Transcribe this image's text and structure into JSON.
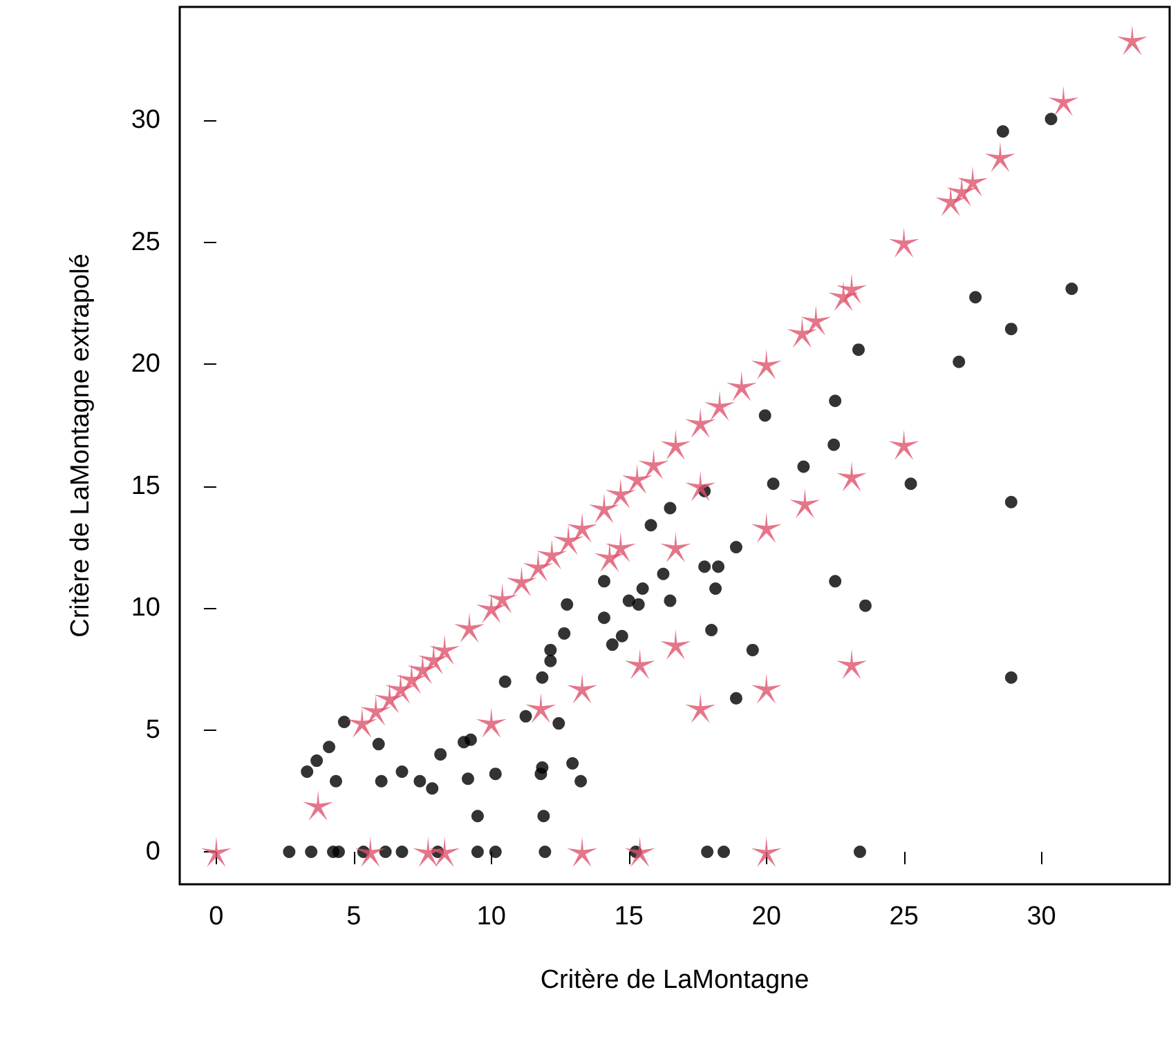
{
  "chart_data": {
    "type": "scatter",
    "xlabel": "Critère de LaMontagne",
    "ylabel": "Critère de LaMontagne extrapolé",
    "xlim": [
      -1.33,
      34.66
    ],
    "ylim": [
      -1.33,
      34.66
    ],
    "xticks": [
      0,
      5,
      10,
      15,
      20,
      25,
      30
    ],
    "yticks": [
      0,
      5,
      10,
      15,
      20,
      25,
      30
    ],
    "grid": false,
    "series": [
      {
        "color": "#000000",
        "marker": "circle",
        "x": [
          2.65,
          3.45,
          4.25,
          4.45,
          5.35,
          6.15,
          6.75,
          8.05,
          9.5,
          10.15,
          11.95,
          15.25,
          17.85,
          18.45,
          23.4,
          3.3,
          3.65,
          4.35,
          4.1,
          4.65,
          5.9,
          6.0,
          6.75,
          7.4,
          7.85,
          8.15,
          9.0,
          9.15,
          9.25,
          10.15,
          9.5,
          10.5,
          11.25,
          11.8,
          11.85,
          11.9,
          12.15,
          12.45,
          12.95,
          13.25,
          11.85,
          12.15,
          12.65,
          12.75,
          14.1,
          14.1,
          14.4,
          14.75,
          15.0,
          15.35,
          15.5,
          16.25,
          16.5,
          18.0,
          18.15,
          17.75,
          18.25,
          18.9,
          18.9,
          19.5,
          19.95,
          20.25,
          21.35,
          22.5,
          22.45,
          22.5,
          23.35,
          23.6,
          25.25,
          27.0,
          27.6,
          28.9,
          28.9,
          28.9,
          31.1,
          28.6,
          30.35,
          15.8,
          16.5,
          17.75
        ],
        "values": [
          0,
          0,
          0,
          0,
          0,
          0,
          0,
          0,
          0,
          0,
          0,
          0,
          0,
          0,
          0,
          3.29,
          3.74,
          2.9,
          4.3,
          5.33,
          4.42,
          2.9,
          3.29,
          2.9,
          2.6,
          4.0,
          4.5,
          3.0,
          4.6,
          3.2,
          1.47,
          6.98,
          5.56,
          3.2,
          3.46,
          1.47,
          7.83,
          5.27,
          3.63,
          2.9,
          7.15,
          8.28,
          8.96,
          10.15,
          11.1,
          9.6,
          8.5,
          8.85,
          10.3,
          10.15,
          10.8,
          11.4,
          10.3,
          9.1,
          10.8,
          11.7,
          11.7,
          12.5,
          6.3,
          8.28,
          17.9,
          15.1,
          15.8,
          18.5,
          16.7,
          11.1,
          20.6,
          10.1,
          15.1,
          20.1,
          22.75,
          21.45,
          14.35,
          7.15,
          23.1,
          29.55,
          30.06,
          13.4,
          14.1,
          14.8
        ]
      },
      {
        "color": "#df536b",
        "marker": "star",
        "x": [
          0,
          5.3,
          5.8,
          6.3,
          6.7,
          7.1,
          7.5,
          7.9,
          8.3,
          9.2,
          10,
          10.4,
          11.1,
          11.7,
          12.2,
          12.8,
          13.3,
          14.1,
          14.7,
          15.3,
          15.9,
          16.7,
          17.6,
          18.3,
          19.1,
          20,
          21.3,
          21.8,
          22.8,
          23.1,
          25,
          26.7,
          27.1,
          27.5,
          28.5,
          30.8,
          33.3,
          20,
          21.4,
          23.1,
          25,
          23.1,
          16.7,
          15.4,
          13.3,
          11.8,
          10,
          5.6,
          7.7,
          8.3,
          13.3,
          15.4,
          20,
          3.7,
          20,
          17.6,
          14.3,
          14.7,
          16.7,
          17.6
        ],
        "values": [
          0,
          5.3,
          5.8,
          6.3,
          6.7,
          7.1,
          7.5,
          7.9,
          8.3,
          9.2,
          10,
          10.4,
          11.1,
          11.7,
          12.2,
          12.8,
          13.3,
          14.1,
          14.7,
          15.3,
          15.9,
          16.7,
          17.6,
          18.3,
          19.1,
          20,
          21.3,
          21.8,
          22.8,
          23.1,
          25,
          26.7,
          27.1,
          27.5,
          28.5,
          30.8,
          33.3,
          13.3,
          14.3,
          15.4,
          16.7,
          7.7,
          8.5,
          7.7,
          6.7,
          5.9,
          5.3,
          0,
          0,
          0,
          0,
          0,
          0,
          1.9,
          6.7,
          5.9,
          12.1,
          12.5,
          12.5,
          15
        ]
      }
    ]
  }
}
